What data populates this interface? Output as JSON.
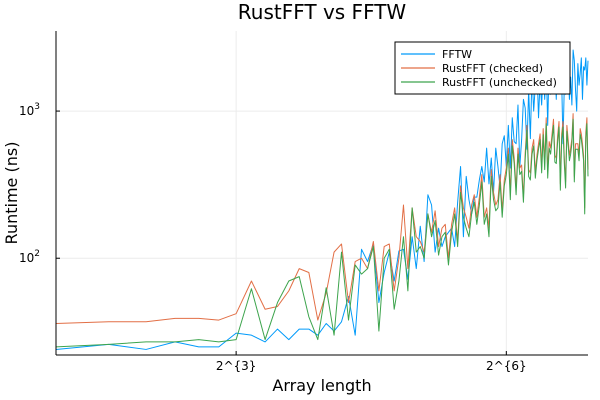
{
  "chart_data": {
    "type": "line",
    "title": "RustFFT vs FFTW",
    "xlabel": "Array length",
    "ylabel": "Runtime (ns)",
    "x_scale": "log2",
    "y_scale": "log10",
    "xlim": [
      2,
      120
    ],
    "ylim": [
      22,
      3500
    ],
    "x_ticks": [
      {
        "value": 8,
        "label": "2^{3}"
      },
      {
        "value": 64,
        "label": "2^{6}"
      }
    ],
    "y_ticks": [
      {
        "value": 100,
        "label_base": "10",
        "label_exp": "2"
      },
      {
        "value": 1000,
        "label_base": "10",
        "label_exp": "3"
      }
    ],
    "grid": true,
    "legend_position": "top-right",
    "x": [
      2,
      3,
      4,
      5,
      6,
      7,
      8,
      9,
      10,
      11,
      12,
      13,
      14,
      15,
      16,
      17,
      18,
      19,
      20,
      21,
      22,
      23,
      24,
      25,
      26,
      27,
      28,
      29,
      30,
      31,
      32,
      33,
      34,
      35,
      36,
      37,
      38,
      39,
      40,
      41,
      42,
      43,
      44,
      45,
      46,
      47,
      48,
      49,
      50,
      51,
      52,
      53,
      54,
      55,
      56,
      57,
      58,
      59,
      60,
      61,
      62,
      63,
      64,
      65,
      66,
      67,
      68,
      69,
      70,
      71,
      72,
      73,
      74,
      75,
      76,
      77,
      78,
      79,
      80,
      81,
      82,
      83,
      84,
      85,
      86,
      87,
      88,
      89,
      90,
      91,
      92,
      93,
      94,
      95,
      96,
      97,
      98,
      99,
      100,
      101,
      102,
      103,
      104,
      105,
      106,
      107,
      108,
      109,
      110,
      111,
      112,
      113,
      114,
      115,
      116,
      117,
      118,
      119,
      120
    ],
    "series": [
      {
        "name": "FFTW",
        "color": "#009AFA",
        "values": [
          24,
          26,
          24,
          27,
          25,
          25,
          31,
          30,
          27,
          33,
          28,
          33,
          33,
          30,
          36,
          32,
          37,
          55,
          30,
          115,
          95,
          125,
          50,
          80,
          110,
          70,
          112,
          115,
          72,
          140,
          85,
          165,
          95,
          270,
          230,
          110,
          160,
          120,
          140,
          150,
          160,
          120,
          240,
          420,
          140,
          360,
          250,
          200,
          260,
          260,
          340,
          420,
          330,
          560,
          320,
          480,
          280,
          560,
          420,
          300,
          600,
          680,
          420,
          800,
          410,
          900,
          620,
          600,
          1100,
          420,
          640,
          1200,
          1050,
          550,
          1400,
          650,
          1800,
          1000,
          1500,
          2000,
          900,
          1600,
          1100,
          1900,
          1200,
          2100,
          800,
          2200,
          1300,
          1500,
          2500,
          2000,
          1200,
          2200,
          1500,
          1700,
          1600,
          600,
          1500,
          1300,
          2400,
          2100,
          1200,
          1700,
          1100,
          2600,
          2200,
          1400,
          1000,
          2100,
          1500,
          1800,
          2300,
          1200,
          2000,
          1900,
          2300,
          1500,
          2200
        ]
      },
      {
        "name": "RustFFT (checked)",
        "color": "#E26F46",
        "values": [
          36,
          37,
          37,
          39,
          39,
          38,
          42,
          70,
          45,
          47,
          60,
          85,
          80,
          38,
          58,
          110,
          125,
          50,
          95,
          100,
          85,
          130,
          60,
          120,
          125,
          60,
          100,
          230,
          85,
          220,
          140,
          130,
          110,
          200,
          150,
          210,
          120,
          160,
          170,
          100,
          170,
          220,
          130,
          310,
          220,
          190,
          160,
          230,
          270,
          190,
          260,
          370,
          190,
          220,
          160,
          400,
          280,
          230,
          250,
          370,
          210,
          340,
          410,
          560,
          280,
          640,
          480,
          300,
          560,
          410,
          430,
          260,
          520,
          800,
          400,
          380,
          560,
          640,
          380,
          500,
          600,
          700,
          420,
          760,
          440,
          900,
          390,
          620,
          560,
          700,
          880,
          500,
          480,
          680,
          850,
          320,
          700,
          850,
          480,
          330,
          800,
          640,
          500,
          560,
          650,
          960,
          360,
          600,
          600,
          600,
          500,
          760,
          700,
          600,
          500,
          220,
          720,
          900,
          400
        ]
      },
      {
        "name": "RustFFT (unchecked)",
        "color": "#3DA44D",
        "values": [
          25,
          26,
          27,
          27,
          28,
          27,
          28,
          62,
          28,
          50,
          70,
          75,
          40,
          28,
          63,
          30,
          110,
          38,
          90,
          78,
          85,
          120,
          32,
          100,
          115,
          45,
          70,
          140,
          60,
          220,
          110,
          120,
          100,
          200,
          140,
          180,
          105,
          140,
          150,
          90,
          150,
          200,
          120,
          280,
          190,
          160,
          140,
          200,
          240,
          170,
          230,
          330,
          170,
          200,
          140,
          360,
          250,
          210,
          220,
          330,
          190,
          310,
          370,
          510,
          250,
          580,
          440,
          270,
          510,
          370,
          390,
          240,
          470,
          740,
          360,
          340,
          510,
          580,
          350,
          460,
          550,
          640,
          380,
          690,
          400,
          820,
          350,
          560,
          510,
          640,
          800,
          450,
          440,
          620,
          780,
          290,
          640,
          780,
          440,
          300,
          730,
          580,
          460,
          510,
          600,
          880,
          330,
          550,
          550,
          550,
          460,
          700,
          640,
          550,
          460,
          200,
          660,
          820,
          360
        ]
      }
    ]
  }
}
